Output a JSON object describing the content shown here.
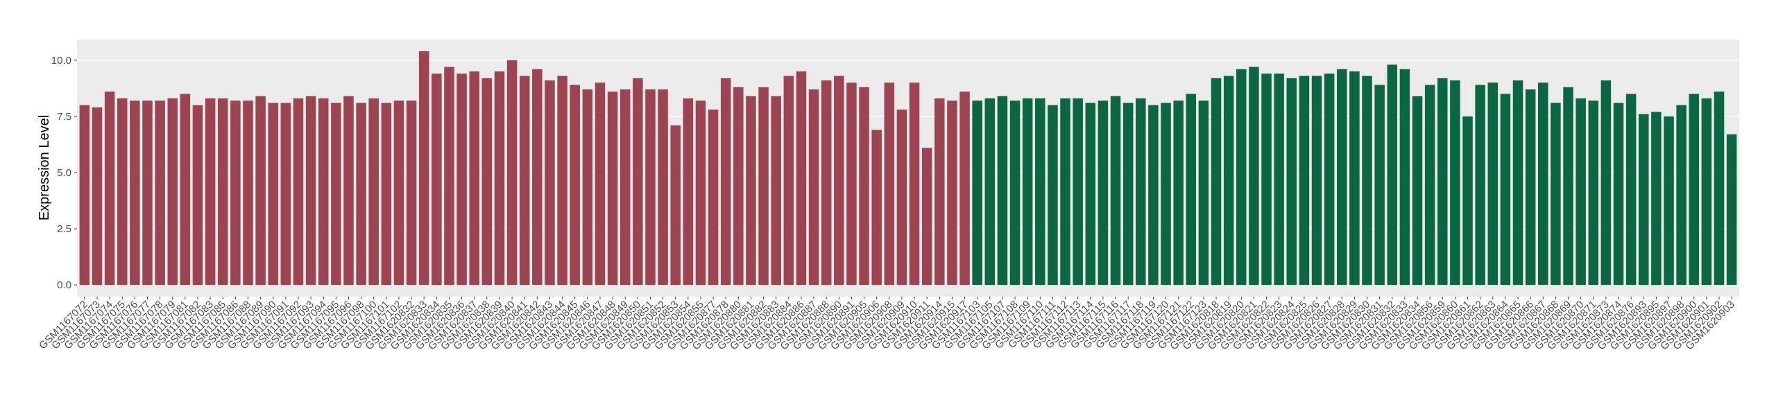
{
  "chart_data": {
    "type": "bar",
    "y_label": "Expression Level",
    "ylim": [
      -0.52,
      10.92
    ],
    "yticks": [
      {
        "value": 0,
        "label": "0.0"
      },
      {
        "value": 2.5,
        "label": "2.5"
      },
      {
        "value": 5,
        "label": "5.0"
      },
      {
        "value": 7.5,
        "label": "7.5"
      },
      {
        "value": 10,
        "label": "10.0"
      }
    ],
    "grid": true,
    "series": [
      {
        "color": "#9c4452",
        "categories": [
          "GSM1167072",
          "GSM1167073",
          "GSM1167074",
          "GSM1167075",
          "GSM1167076",
          "GSM1167077",
          "GSM1167078",
          "GSM1167079",
          "GSM1167081",
          "GSM1167082",
          "GSM1167083",
          "GSM1167085",
          "GSM1167086",
          "GSM1167088",
          "GSM1167089",
          "GSM1167090",
          "GSM1167091",
          "GSM1167092",
          "GSM1167093",
          "GSM1167094",
          "GSM1167095",
          "GSM1167096",
          "GSM1167098",
          "GSM1167100",
          "GSM1167101",
          "GSM1167102",
          "GSM1620832",
          "GSM1620833",
          "GSM1620834",
          "GSM1620835",
          "GSM1620836",
          "GSM1620837",
          "GSM1620838",
          "GSM1620839",
          "GSM1620840",
          "GSM1620841",
          "GSM1620842",
          "GSM1620843",
          "GSM1620844",
          "GSM1620845",
          "GSM1620846",
          "GSM1620847",
          "GSM1620848",
          "GSM1620849",
          "GSM1620850",
          "GSM1620851",
          "GSM1620852",
          "GSM1620853",
          "GSM1620854",
          "GSM1620855",
          "GSM1620877",
          "GSM1620878",
          "GSM1620880",
          "GSM1620881",
          "GSM1620882",
          "GSM1620883",
          "GSM1620884",
          "GSM1620886",
          "GSM1620887",
          "GSM1620888",
          "GSM1620890",
          "GSM1620891",
          "GSM1620905",
          "GSM1620906",
          "GSM1620908",
          "GSM1620909",
          "GSM1620910",
          "GSM1620911",
          "GSM1620914",
          "GSM1620915",
          "GSM1620917"
        ],
        "values": [
          8.0,
          7.9,
          8.6,
          8.3,
          8.2,
          8.2,
          8.2,
          8.3,
          8.5,
          8.0,
          8.3,
          8.3,
          8.2,
          8.2,
          8.4,
          8.1,
          8.1,
          8.3,
          8.4,
          8.3,
          8.1,
          8.4,
          8.1,
          8.3,
          8.1,
          8.2,
          8.2,
          10.4,
          9.4,
          9.7,
          9.4,
          9.5,
          9.2,
          9.5,
          10.0,
          9.3,
          9.6,
          9.1,
          9.3,
          8.9,
          8.7,
          9.0,
          8.6,
          8.7,
          9.2,
          8.7,
          8.7,
          7.1,
          8.3,
          8.2,
          7.8,
          9.2,
          8.8,
          8.4,
          8.8,
          8.4,
          9.3,
          9.5,
          8.7,
          9.1,
          9.3,
          9.0,
          8.8,
          6.9,
          9.0,
          7.8,
          9.0,
          6.1,
          8.3,
          8.2,
          8.6
        ]
      },
      {
        "color": "#0b6644",
        "categories": [
          "GSM1167103",
          "GSM1167105",
          "GSM1167107",
          "GSM1167108",
          "GSM1167109",
          "GSM1167110",
          "GSM1167111",
          "GSM1167112",
          "GSM1167113",
          "GSM1167114",
          "GSM1167115",
          "GSM1167116",
          "GSM1167117",
          "GSM1167118",
          "GSM1167119",
          "GSM1167120",
          "GSM1167121",
          "GSM1167122",
          "GSM1167123",
          "GSM1620818",
          "GSM1620819",
          "GSM1620820",
          "GSM1620821",
          "GSM1620822",
          "GSM1620823",
          "GSM1620824",
          "GSM1620825",
          "GSM1620826",
          "GSM1620827",
          "GSM1620828",
          "GSM1620829",
          "GSM1620830",
          "GSM1620831",
          "GSM1620832",
          "GSM1620833",
          "GSM1620834",
          "GSM1620856",
          "GSM1620859",
          "GSM1620860",
          "GSM1620861",
          "GSM1620862",
          "GSM1620863",
          "GSM1620864",
          "GSM1620865",
          "GSM1620866",
          "GSM1620867",
          "GSM1620868",
          "GSM1620869",
          "GSM1620870",
          "GSM1620871",
          "GSM1620873",
          "GSM1620874",
          "GSM1620876",
          "GSM1620893",
          "GSM1620895",
          "GSM1620897",
          "GSM1620898",
          "GSM1620900",
          "GSM1620901",
          "GSM1620902",
          "GSM1620903"
        ],
        "values": [
          8.2,
          8.3,
          8.4,
          8.2,
          8.3,
          8.3,
          8.0,
          8.3,
          8.3,
          8.1,
          8.2,
          8.4,
          8.1,
          8.3,
          8.0,
          8.1,
          8.2,
          8.5,
          8.2,
          9.2,
          9.3,
          9.6,
          9.7,
          9.4,
          9.4,
          9.2,
          9.3,
          9.3,
          9.4,
          9.6,
          9.5,
          9.3,
          8.9,
          9.8,
          9.6,
          8.4,
          8.9,
          9.2,
          9.1,
          7.5,
          8.9,
          9.0,
          8.5,
          9.1,
          8.7,
          9.0,
          8.1,
          8.8,
          8.3,
          8.2,
          9.1,
          8.1,
          8.5,
          7.6,
          7.7,
          7.5,
          8.0,
          8.5,
          8.3,
          8.6,
          6.7
        ]
      }
    ]
  }
}
